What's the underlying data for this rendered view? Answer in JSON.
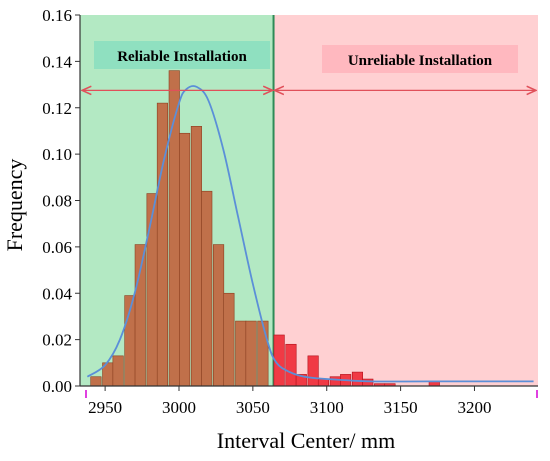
{
  "chart_data": {
    "type": "bar",
    "xlabel": "Interval Center/ mm",
    "ylabel": "Frequency",
    "xlim": [
      2933,
      3243
    ],
    "ylim": [
      0,
      0.16
    ],
    "x_ticks": [
      2950,
      3000,
      3050,
      3100,
      3150,
      3200
    ],
    "y_ticks": [
      0.0,
      0.02,
      0.04,
      0.06,
      0.08,
      0.1,
      0.12,
      0.14,
      0.16
    ],
    "y_tick_labels": [
      "0.00",
      "0.02",
      "0.04",
      "0.06",
      "0.08",
      "0.10",
      "0.12",
      "0.14",
      "0.16"
    ],
    "grid": false,
    "regions": [
      {
        "label": "Reliable Installation",
        "x_range": [
          2933,
          3064
        ],
        "color": "#b3e9c3"
      },
      {
        "label": "Unreliable Installation",
        "x_range": [
          3064,
          3243
        ],
        "color": "#ffd0d2"
      }
    ],
    "threshold_x": 3064,
    "range_arrow_y": 0.1275,
    "bin_width": 7.5,
    "series": [
      {
        "kind": "histogram",
        "color": "#c0704a",
        "stroke": "#8a3f20",
        "x": [
          2944,
          2952,
          2959,
          2967,
          2974,
          2982,
          2989,
          2997,
          3004,
          3012,
          3019,
          3027,
          3034,
          3042,
          3049,
          3057
        ],
        "values": [
          0.004,
          0.01,
          0.013,
          0.039,
          0.061,
          0.083,
          0.122,
          0.136,
          0.109,
          0.112,
          0.084,
          0.061,
          0.04,
          0.028,
          0.028,
          0.028
        ]
      },
      {
        "kind": "histogram",
        "color": "#f03a45",
        "stroke": "#b0101a",
        "x": [
          3068,
          3076,
          3083,
          3091,
          3098,
          3106,
          3113,
          3121,
          3128,
          3136,
          3143,
          3151,
          3158,
          3166,
          3173
        ],
        "values": [
          0.022,
          0.018,
          0.005,
          0.013,
          0.003,
          0.004,
          0.005,
          0.006,
          0.003,
          0.001,
          0.001,
          0.0,
          0.0,
          0.0,
          0.002
        ]
      },
      {
        "kind": "line",
        "color": "#5b8fd8",
        "x": [
          2938,
          2950,
          2960,
          2970,
          2980,
          2990,
          3000,
          3005,
          3012,
          3020,
          3030,
          3040,
          3050,
          3060,
          3066,
          3075,
          3085,
          3100,
          3130,
          3170,
          3240
        ],
        "values": [
          0.004,
          0.009,
          0.02,
          0.04,
          0.068,
          0.098,
          0.122,
          0.128,
          0.129,
          0.123,
          0.102,
          0.073,
          0.044,
          0.019,
          0.01,
          0.006,
          0.004,
          0.003,
          0.002,
          0.002,
          0.002
        ]
      }
    ]
  }
}
